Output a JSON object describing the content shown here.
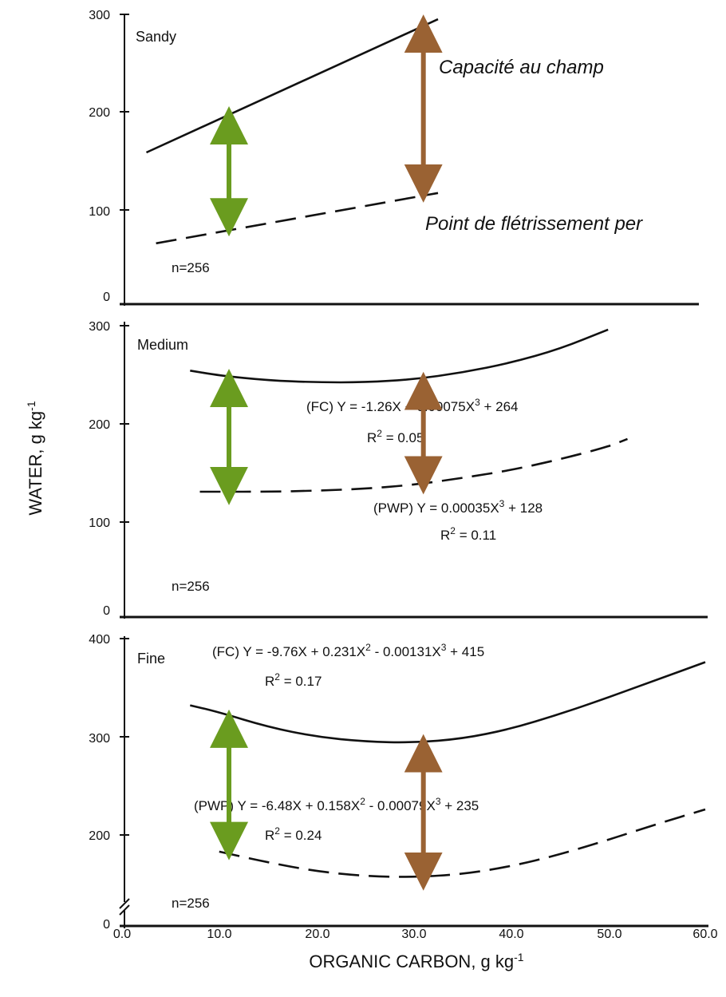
{
  "chart_data": {
    "type": "line",
    "xlabel": "ORGANIC CARBON, g kg",
    "xlabel_sup": "-1",
    "ylabel": "WATER, g kg",
    "ylabel_sup": "-1",
    "xlim": [
      0,
      60
    ],
    "x_ticks": [
      "0.0",
      "10.0",
      "20.0",
      "30.0",
      "40.0",
      "50.0",
      "60.0"
    ],
    "grid": false,
    "panels": [
      {
        "label": "Sandy",
        "n_label": "n=256",
        "ylim": [
          0,
          300
        ],
        "y_ticks": [
          "0",
          "100",
          "200",
          "300"
        ],
        "series": [
          {
            "name": "FC",
            "style": "solid",
            "x": [
              2.5,
              32.5
            ],
            "y": [
              157,
              295
            ]
          },
          {
            "name": "PWP",
            "style": "dashed",
            "x": [
              3.5,
              32.5
            ],
            "y": [
              63,
              115
            ]
          }
        ],
        "annotations": [
          {
            "text": "Capacité au champ",
            "style": "italic",
            "position": "right"
          },
          {
            "text": "Point de flétrissement per",
            "style": "italic",
            "position": "right"
          }
        ],
        "arrows": [
          {
            "color": "#6a9c1f",
            "x": 11,
            "y_from": 80,
            "y_to": 195
          },
          {
            "color": "#9a6233",
            "x": 31,
            "y_from": 115,
            "y_to": 290
          }
        ]
      },
      {
        "label": "Medium",
        "n_label": "n=256",
        "ylim": [
          0,
          300
        ],
        "y_ticks": [
          "0",
          "100",
          "200",
          "300"
        ],
        "equations": [
          {
            "line1": "(FC) Y = -1.26X + 0.00075X",
            "sup": "3",
            "line1_end": " + 264",
            "line2": "R",
            "line2_sup": "2",
            "line2_end": " = 0.05"
          },
          {
            "line1": "(PWP) Y = 0.00035X",
            "sup": "3",
            "line1_end": " + 128",
            "line2": "R",
            "line2_sup": "2",
            "line2_end": " = 0.11"
          }
        ],
        "series": [
          {
            "name": "FC",
            "style": "solid",
            "x": [
              7,
              10,
              15,
              20,
              25,
              30,
              35,
              40,
              45,
              50
            ],
            "y": [
              254,
              249,
              244,
              242,
              242,
              245,
              252,
              262,
              276,
              296
            ]
          },
          {
            "name": "PWP",
            "style": "dashed",
            "x": [
              8,
              10,
              15,
              20,
              25,
              30,
              35,
              40,
              45,
              50,
              52
            ],
            "y": [
              130,
              130,
              130,
              131,
              133,
              137,
              144,
              152,
              163,
              176,
              184
            ]
          }
        ],
        "arrows": [
          {
            "color": "#6a9c1f",
            "x": 11,
            "y_from": 126,
            "y_to": 246
          },
          {
            "color": "#9a6233",
            "x": 31,
            "y_from": 137,
            "y_to": 243
          }
        ]
      },
      {
        "label": "Fine",
        "n_label": "n=256",
        "ylim": [
          0,
          400
        ],
        "y_ticks": [
          "0",
          "200",
          "300",
          "400"
        ],
        "equations": [
          {
            "line1": "(FC) Y = -9.76X + 0.231X",
            "sup": "2",
            "line1_mid": " - 0.00131X",
            "sup2": "3",
            "line1_end": " + 415",
            "line2": "R",
            "line2_sup": "2",
            "line2_end": " = 0.17"
          },
          {
            "line1": "(PWP) Y = -6.48X + 0.158X",
            "sup": "2",
            "line1_mid": " - 0.00079X",
            "sup2": "3",
            "line1_end": " + 235",
            "line2": "R",
            "line2_sup": "2",
            "line2_end": " = 0.24"
          }
        ],
        "series": [
          {
            "name": "FC",
            "style": "solid",
            "x": [
              7,
              10,
              15,
              20,
              25,
              30,
              35,
              40,
              45,
              50,
              55,
              60
            ],
            "y": [
              332,
              325,
              310,
              300,
              295,
              294,
              298,
              308,
              323,
              340,
              358,
              376
            ]
          },
          {
            "name": "PWP",
            "style": "dashed",
            "x": [
              10,
              15,
              20,
              25,
              30,
              35,
              40,
              45,
              50,
              55,
              60
            ],
            "y": [
              183,
              172,
              163,
              158,
              157,
              160,
              168,
              180,
              195,
              211,
              226
            ]
          }
        ],
        "arrows": [
          {
            "color": "#6a9c1f",
            "x": 11,
            "y_from": 184,
            "y_to": 318
          },
          {
            "color": "#9a6233",
            "x": 31,
            "y_from": 153,
            "y_to": 293
          }
        ]
      }
    ]
  }
}
